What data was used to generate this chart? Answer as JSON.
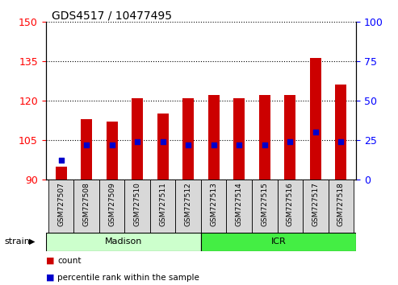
{
  "title": "GDS4517 / 10477495",
  "categories": [
    "GSM727507",
    "GSM727508",
    "GSM727509",
    "GSM727510",
    "GSM727511",
    "GSM727512",
    "GSM727513",
    "GSM727514",
    "GSM727515",
    "GSM727516",
    "GSM727517",
    "GSM727518"
  ],
  "bar_bottoms": [
    90,
    90,
    90,
    90,
    90,
    90,
    90,
    90,
    90,
    90,
    90,
    90
  ],
  "bar_tops": [
    95,
    113,
    112,
    121,
    115,
    121,
    122,
    121,
    122,
    122,
    136,
    126
  ],
  "dot_values_pct": [
    12,
    22,
    22,
    24,
    24,
    22,
    22,
    22,
    22,
    24,
    30,
    24
  ],
  "ylim_left": [
    90,
    150
  ],
  "ylim_right": [
    0,
    100
  ],
  "yticks_left": [
    90,
    105,
    120,
    135,
    150
  ],
  "yticks_right": [
    0,
    25,
    50,
    75,
    100
  ],
  "bar_color": "#cc0000",
  "dot_color": "#0000cc",
  "strain_groups": [
    {
      "label": "Madison",
      "start": 0,
      "end": 6,
      "color": "#ccffcc"
    },
    {
      "label": "ICR",
      "start": 6,
      "end": 12,
      "color": "#44ee44"
    }
  ],
  "legend_items": [
    {
      "label": "count",
      "color": "#cc0000"
    },
    {
      "label": "percentile rank within the sample",
      "color": "#0000cc"
    }
  ],
  "strain_label": "strain"
}
